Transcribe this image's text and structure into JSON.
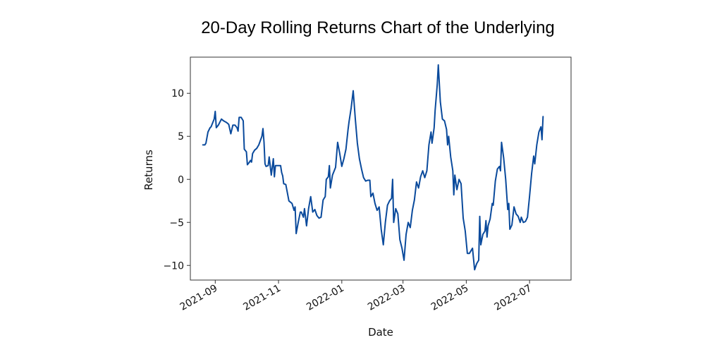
{
  "chart_data": {
    "type": "line",
    "title": "20-Day Rolling Returns Chart of the Underlying",
    "xlabel": "Date",
    "ylabel": "Returns",
    "x_ticks": [
      "2021-09",
      "2021-11",
      "2022-01",
      "2022-03",
      "2022-05",
      "2022-07"
    ],
    "y_ticks": [
      10,
      5,
      0,
      -5,
      -10
    ],
    "xlim": [
      "2021-08-08",
      "2022-08-10"
    ],
    "ylim": [
      -11.7,
      14.2
    ],
    "grid": false,
    "line_color": "#0a4a9c",
    "series": [
      {
        "points": [
          [
            "2021-08-20",
            4.0
          ],
          [
            "2021-08-22",
            4.0
          ],
          [
            "2021-08-23",
            4.2
          ],
          [
            "2021-08-25",
            5.5
          ],
          [
            "2021-08-27",
            6.0
          ],
          [
            "2021-08-28",
            6.1
          ],
          [
            "2021-08-31",
            7.0
          ],
          [
            "2021-09-01",
            7.9
          ],
          [
            "2021-09-02",
            6.0
          ],
          [
            "2021-09-04",
            6.3
          ],
          [
            "2021-09-07",
            7.0
          ],
          [
            "2021-09-09",
            6.8
          ],
          [
            "2021-09-12",
            6.6
          ],
          [
            "2021-09-14",
            6.4
          ],
          [
            "2021-09-16",
            5.3
          ],
          [
            "2021-09-18",
            6.3
          ],
          [
            "2021-09-20",
            6.3
          ],
          [
            "2021-09-22",
            6.0
          ],
          [
            "2021-09-23",
            5.6
          ],
          [
            "2021-09-24",
            7.2
          ],
          [
            "2021-09-26",
            7.2
          ],
          [
            "2021-09-28",
            6.8
          ],
          [
            "2021-09-29",
            3.5
          ],
          [
            "2021-10-01",
            3.2
          ],
          [
            "2021-10-02",
            1.7
          ],
          [
            "2021-10-04",
            2.0
          ],
          [
            "2021-10-05",
            2.2
          ],
          [
            "2021-10-06",
            2.0
          ],
          [
            "2021-10-07",
            3.0
          ],
          [
            "2021-10-09",
            3.4
          ],
          [
            "2021-10-11",
            3.6
          ],
          [
            "2021-10-13",
            4.0
          ],
          [
            "2021-10-16",
            5.0
          ],
          [
            "2021-10-17",
            5.9
          ],
          [
            "2021-10-18",
            4.3
          ],
          [
            "2021-10-19",
            1.8
          ],
          [
            "2021-10-20",
            1.5
          ],
          [
            "2021-10-22",
            1.6
          ],
          [
            "2021-10-23",
            2.6
          ],
          [
            "2021-10-25",
            0.5
          ],
          [
            "2021-10-27",
            2.4
          ],
          [
            "2021-10-28",
            0.3
          ],
          [
            "2021-10-29",
            1.6
          ],
          [
            "2021-11-03",
            1.6
          ],
          [
            "2021-11-04",
            0.8
          ],
          [
            "2021-11-05",
            0.4
          ],
          [
            "2021-11-06",
            -0.5
          ],
          [
            "2021-11-08",
            -0.6
          ],
          [
            "2021-11-09",
            -1.2
          ],
          [
            "2021-11-11",
            -2.5
          ],
          [
            "2021-11-14",
            -2.8
          ],
          [
            "2021-11-16",
            -3.6
          ],
          [
            "2021-11-17",
            -3.2
          ],
          [
            "2021-11-18",
            -6.3
          ],
          [
            "2021-11-20",
            -5.0
          ],
          [
            "2021-11-22",
            -3.8
          ],
          [
            "2021-11-23",
            -3.8
          ],
          [
            "2021-11-25",
            -4.4
          ],
          [
            "2021-11-26",
            -3.4
          ],
          [
            "2021-11-28",
            -5.4
          ],
          [
            "2021-11-30",
            -3.4
          ],
          [
            "2021-12-02",
            -2.0
          ],
          [
            "2021-12-04",
            -3.8
          ],
          [
            "2021-12-06",
            -3.5
          ],
          [
            "2021-12-08",
            -4.2
          ],
          [
            "2021-12-10",
            -4.5
          ],
          [
            "2021-12-12",
            -4.4
          ],
          [
            "2021-12-14",
            -2.4
          ],
          [
            "2021-12-16",
            -2.0
          ],
          [
            "2021-12-17",
            0.0
          ],
          [
            "2021-12-19",
            0.3
          ],
          [
            "2021-12-20",
            1.6
          ],
          [
            "2021-12-21",
            -1.0
          ],
          [
            "2021-12-23",
            0.5
          ],
          [
            "2021-12-26",
            1.4
          ],
          [
            "2021-12-28",
            4.3
          ],
          [
            "2021-12-30",
            3.0
          ],
          [
            "2022-01-01",
            1.5
          ],
          [
            "2022-01-03",
            2.4
          ],
          [
            "2022-01-05",
            3.5
          ],
          [
            "2022-01-07",
            5.8
          ],
          [
            "2022-01-08",
            6.7
          ],
          [
            "2022-01-10",
            8.3
          ],
          [
            "2022-01-12",
            10.3
          ],
          [
            "2022-01-14",
            7.0
          ],
          [
            "2022-01-16",
            4.2
          ],
          [
            "2022-01-18",
            2.4
          ],
          [
            "2022-01-20",
            1.2
          ],
          [
            "2022-01-22",
            0.2
          ],
          [
            "2022-01-24",
            -0.2
          ],
          [
            "2022-01-26",
            -0.1
          ],
          [
            "2022-01-28",
            -0.1
          ],
          [
            "2022-01-29",
            -2.0
          ],
          [
            "2022-01-31",
            -1.6
          ],
          [
            "2022-02-02",
            -2.8
          ],
          [
            "2022-02-04",
            -3.6
          ],
          [
            "2022-02-06",
            -3.2
          ],
          [
            "2022-02-08",
            -5.8
          ],
          [
            "2022-02-10",
            -7.6
          ],
          [
            "2022-02-12",
            -5.0
          ],
          [
            "2022-02-14",
            -3.0
          ],
          [
            "2022-02-16",
            -2.5
          ],
          [
            "2022-02-18",
            -2.2
          ],
          [
            "2022-02-19",
            0.0
          ],
          [
            "2022-02-20",
            -5.0
          ],
          [
            "2022-02-22",
            -3.4
          ],
          [
            "2022-02-24",
            -4.0
          ],
          [
            "2022-02-26",
            -7.0
          ],
          [
            "2022-02-28",
            -8.0
          ],
          [
            "2022-03-02",
            -9.4
          ],
          [
            "2022-03-04",
            -6.4
          ],
          [
            "2022-03-06",
            -5.0
          ],
          [
            "2022-03-08",
            -5.6
          ],
          [
            "2022-03-10",
            -3.6
          ],
          [
            "2022-03-12",
            -2.4
          ],
          [
            "2022-03-14",
            -0.3
          ],
          [
            "2022-03-16",
            -1.0
          ],
          [
            "2022-03-18",
            0.3
          ],
          [
            "2022-03-20",
            1.0
          ],
          [
            "2022-03-22",
            0.2
          ],
          [
            "2022-03-24",
            1.0
          ],
          [
            "2022-03-26",
            4.0
          ],
          [
            "2022-03-28",
            5.5
          ],
          [
            "2022-03-29",
            4.2
          ],
          [
            "2022-03-31",
            6.0
          ],
          [
            "2022-04-01",
            8.0
          ],
          [
            "2022-04-03",
            11.0
          ],
          [
            "2022-04-04",
            13.3
          ],
          [
            "2022-04-06",
            9.0
          ],
          [
            "2022-04-08",
            7.0
          ],
          [
            "2022-04-10",
            6.8
          ],
          [
            "2022-04-12",
            5.8
          ],
          [
            "2022-04-13",
            4.0
          ],
          [
            "2022-04-14",
            5.0
          ],
          [
            "2022-04-16",
            2.6
          ],
          [
            "2022-04-18",
            1.0
          ],
          [
            "2022-04-19",
            -1.8
          ],
          [
            "2022-04-20",
            0.5
          ],
          [
            "2022-04-22",
            -1.2
          ],
          [
            "2022-04-24",
            0.0
          ],
          [
            "2022-04-26",
            -0.5
          ],
          [
            "2022-04-28",
            -4.5
          ],
          [
            "2022-04-30",
            -6.0
          ],
          [
            "2022-05-02",
            -8.6
          ],
          [
            "2022-05-04",
            -8.6
          ],
          [
            "2022-05-07",
            -8.0
          ],
          [
            "2022-05-09",
            -10.5
          ],
          [
            "2022-05-11",
            -9.8
          ],
          [
            "2022-05-13",
            -9.4
          ],
          [
            "2022-05-14",
            -4.3
          ],
          [
            "2022-05-15",
            -7.6
          ],
          [
            "2022-05-17",
            -6.4
          ],
          [
            "2022-05-19",
            -6.0
          ],
          [
            "2022-05-20",
            -4.8
          ],
          [
            "2022-05-21",
            -6.7
          ],
          [
            "2022-05-22",
            -5.4
          ],
          [
            "2022-05-24",
            -4.6
          ],
          [
            "2022-05-26",
            -2.8
          ],
          [
            "2022-05-27",
            -3.0
          ],
          [
            "2022-05-29",
            -0.2
          ],
          [
            "2022-05-31",
            1.2
          ],
          [
            "2022-06-02",
            1.5
          ],
          [
            "2022-06-03",
            1.0
          ],
          [
            "2022-06-04",
            4.3
          ],
          [
            "2022-06-06",
            2.5
          ],
          [
            "2022-06-08",
            0.0
          ],
          [
            "2022-06-10",
            -3.5
          ],
          [
            "2022-06-11",
            -2.8
          ],
          [
            "2022-06-12",
            -5.8
          ],
          [
            "2022-06-14",
            -5.3
          ],
          [
            "2022-06-16",
            -3.2
          ],
          [
            "2022-06-18",
            -4.0
          ],
          [
            "2022-06-20",
            -4.3
          ],
          [
            "2022-06-22",
            -5.0
          ],
          [
            "2022-06-23",
            -4.4
          ],
          [
            "2022-06-25",
            -5.0
          ],
          [
            "2022-06-27",
            -4.9
          ],
          [
            "2022-06-29",
            -4.4
          ],
          [
            "2022-07-01",
            -2.0
          ],
          [
            "2022-07-03",
            0.7
          ],
          [
            "2022-07-05",
            2.7
          ],
          [
            "2022-07-06",
            1.8
          ],
          [
            "2022-07-08",
            4.0
          ],
          [
            "2022-07-10",
            5.5
          ],
          [
            "2022-07-12",
            6.1
          ],
          [
            "2022-07-13",
            4.6
          ],
          [
            "2022-07-14",
            7.3
          ]
        ]
      }
    ]
  }
}
